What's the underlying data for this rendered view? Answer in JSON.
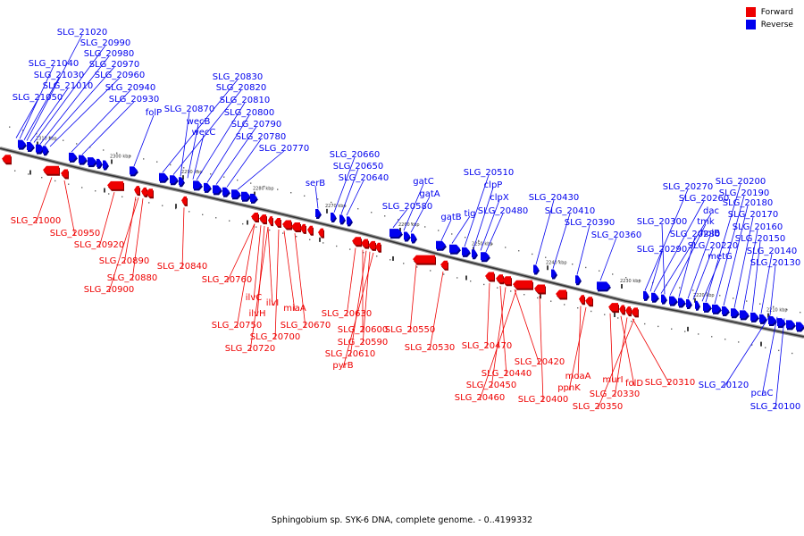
{
  "legend": {
    "forward_label": "Forward",
    "reverse_label": "Reverse",
    "forward_color": "#ee0000",
    "reverse_color": "#0000ee"
  },
  "caption": "Sphingobium sp. SYK-6 DNA, complete genome. - 0..4199332",
  "ticks": [
    "2310 kbp",
    "2300 kbp",
    "2290 kbp",
    "2280 kbp",
    "2270 kbp",
    "2260 kbp",
    "2250 kbp",
    "2240 kbp",
    "2230 kbp",
    "2220 kbp",
    "2210 kbp"
  ],
  "reverse_genes": [
    {
      "label": "SLG_21020"
    },
    {
      "label": "SLG_20990"
    },
    {
      "label": "SLG_20980"
    },
    {
      "label": "SLG_21040"
    },
    {
      "label": "SLG_20970"
    },
    {
      "label": "SLG_21030"
    },
    {
      "label": "SLG_20960"
    },
    {
      "label": "SLG_21010"
    },
    {
      "label": "SLG_20940"
    },
    {
      "label": "SLG_21050"
    },
    {
      "label": "SLG_20930"
    },
    {
      "label": "folP"
    },
    {
      "label": "SLG_20830"
    },
    {
      "label": "SLG_20820"
    },
    {
      "label": "SLG_20870"
    },
    {
      "label": "SLG_20810"
    },
    {
      "label": "wecB"
    },
    {
      "label": "SLG_20800"
    },
    {
      "label": "wecC"
    },
    {
      "label": "SLG_20790"
    },
    {
      "label": "SLG_20780"
    },
    {
      "label": "SLG_20770"
    },
    {
      "label": "SLG_20660"
    },
    {
      "label": "SLG_20650"
    },
    {
      "label": "serB"
    },
    {
      "label": "SLG_20640"
    },
    {
      "label": "gatC"
    },
    {
      "label": "gatA"
    },
    {
      "label": "SLG_20580"
    },
    {
      "label": "gatB"
    },
    {
      "label": "tig"
    },
    {
      "label": "SLG_20510"
    },
    {
      "label": "clpP"
    },
    {
      "label": "clpX"
    },
    {
      "label": "SLG_20480"
    },
    {
      "label": "SLG_20430"
    },
    {
      "label": "SLG_20410"
    },
    {
      "label": "SLG_20390"
    },
    {
      "label": "SLG_20360"
    },
    {
      "label": "SLG_20270"
    },
    {
      "label": "SLG_20260"
    },
    {
      "label": "dac"
    },
    {
      "label": "SLG_20300"
    },
    {
      "label": "tmk"
    },
    {
      "label": "SLG_20280"
    },
    {
      "label": "holB"
    },
    {
      "label": "SLG_20290"
    },
    {
      "label": "SLG_20220"
    },
    {
      "label": "metG"
    },
    {
      "label": "SLG_20200"
    },
    {
      "label": "SLG_20190"
    },
    {
      "label": "SLG_20180"
    },
    {
      "label": "SLG_20170"
    },
    {
      "label": "SLG_20160"
    },
    {
      "label": "SLG_20150"
    },
    {
      "label": "SLG_20140"
    },
    {
      "label": "SLG_20130"
    },
    {
      "label": "SLG_20120"
    },
    {
      "label": "pcaC"
    },
    {
      "label": "SLG_20100"
    }
  ],
  "forward_genes": [
    {
      "label": "SLG_21000"
    },
    {
      "label": "SLG_20950"
    },
    {
      "label": "SLG_20920"
    },
    {
      "label": "SLG_20890"
    },
    {
      "label": "SLG_20880"
    },
    {
      "label": "SLG_20900"
    },
    {
      "label": "SLG_20840"
    },
    {
      "label": "SLG_20760"
    },
    {
      "label": "ilvC"
    },
    {
      "label": "ilvI"
    },
    {
      "label": "ilvH"
    },
    {
      "label": "SLG_20750"
    },
    {
      "label": "SLG_20700"
    },
    {
      "label": "miaA"
    },
    {
      "label": "SLG_20670"
    },
    {
      "label": "SLG_20720"
    },
    {
      "label": "SLG_20630"
    },
    {
      "label": "SLG_20600"
    },
    {
      "label": "SLG_20590"
    },
    {
      "label": "SLG_20610"
    },
    {
      "label": "pyrB"
    },
    {
      "label": "SLG_20550"
    },
    {
      "label": "SLG_20530"
    },
    {
      "label": "SLG_20470"
    },
    {
      "label": "SLG_20420"
    },
    {
      "label": "SLG_20440"
    },
    {
      "label": "SLG_20450"
    },
    {
      "label": "SLG_20460"
    },
    {
      "label": "SLG_20400"
    },
    {
      "label": "moaA"
    },
    {
      "label": "ppnK"
    },
    {
      "label": "murI"
    },
    {
      "label": "folD"
    },
    {
      "label": "SLG_20330"
    },
    {
      "label": "SLG_20350"
    },
    {
      "label": "SLG_20310"
    }
  ]
}
